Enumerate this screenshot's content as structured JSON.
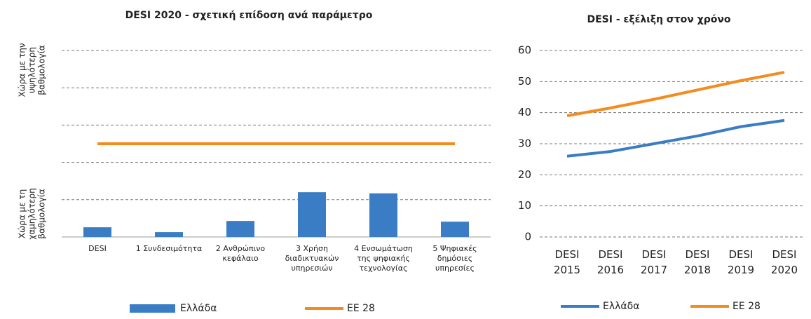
{
  "chart_data": [
    {
      "type": "bar",
      "title": "DESI 2020 - σχετική επίδοση ανά παράμετρο",
      "y_label_top": [
        "Χώρα με την",
        "υψηλότερη",
        "βαθμολογία"
      ],
      "y_label_bottom": [
        "Χώρα με τη",
        "χαμηλότερη",
        "βαθμολογία"
      ],
      "categories": [
        "DESI",
        "1 Συνδεσιμότητα",
        "2 Ανθρώπινο κεφάλαιο",
        "3 Χρήση διαδικτυακών υπηρεσιών",
        "4 Ενσωμάτωση της ψηφιακής τεχνολογίας",
        "5 Ψηφιακές δημόσιες υπηρεσίες"
      ],
      "series": [
        {
          "name": "Ελλάδα",
          "color": "#3a7dc4",
          "values": [
            0.26,
            0.13,
            0.43,
            1.2,
            1.17,
            0.41
          ]
        },
        {
          "name": "EE 28",
          "color": "#f48b1f",
          "type": "line",
          "values": [
            2.5,
            2.5,
            2.5,
            2.5,
            2.5,
            2.5
          ]
        }
      ],
      "ylim": [
        0,
        5
      ],
      "yticks": [
        1,
        2,
        3,
        4,
        5
      ],
      "grid": true
    },
    {
      "type": "line",
      "title": "DESI - εξέλιξη στον χρόνο",
      "categories": [
        "DESI 2015",
        "DESI 2016",
        "DESI 2017",
        "DESI 2018",
        "DESI 2019",
        "DESI 2020"
      ],
      "series": [
        {
          "name": "Ελλάδα",
          "color": "#3a7dc4",
          "values": [
            26,
            27.5,
            30,
            32.5,
            35.5,
            37.5
          ]
        },
        {
          "name": "EE 28",
          "color": "#f48b1f",
          "values": [
            39,
            41.5,
            44.3,
            47.3,
            50.3,
            53
          ]
        }
      ],
      "ylim": [
        0,
        60
      ],
      "yticks": [
        0,
        10,
        20,
        30,
        40,
        50,
        60
      ],
      "grid": true
    }
  ]
}
